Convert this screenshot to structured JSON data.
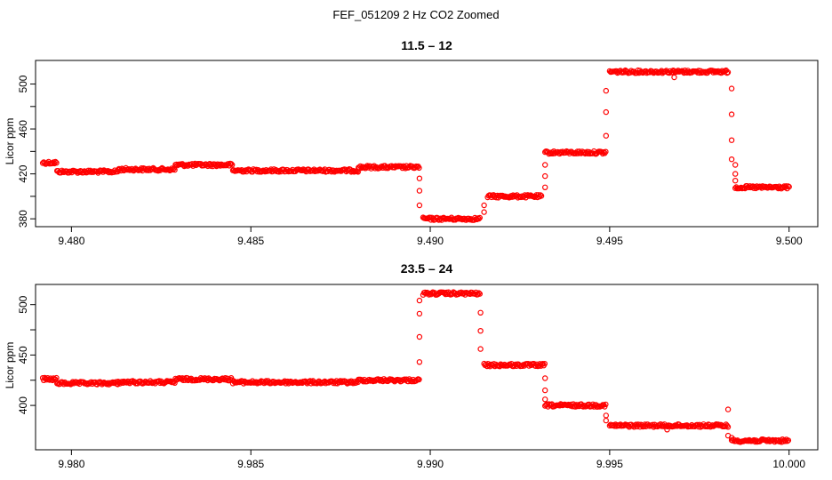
{
  "figure": {
    "title": "FEF_051209  2 Hz CO2 Zoomed"
  },
  "chart_data": [
    {
      "type": "scatter",
      "title": "11.5 – 12",
      "xlabel": "",
      "ylabel": "Licor ppm",
      "xlim": [
        9.479,
        9.5008
      ],
      "ylim": [
        373,
        521
      ],
      "x_ticks": [
        9.48,
        9.485,
        9.49,
        9.495,
        9.5
      ],
      "x_tick_labels": [
        "9.480",
        "9.485",
        "9.490",
        "9.495",
        "9.500"
      ],
      "y_ticks": [
        380,
        420,
        460,
        500
      ],
      "y_tick_labels": [
        "380",
        "420",
        "460",
        "500"
      ],
      "marker_color": "#ff0000",
      "segments": [
        {
          "x_start": 9.4792,
          "x_end": 9.4796,
          "y": 430
        },
        {
          "x_start": 9.4796,
          "x_end": 9.4813,
          "y": 422
        },
        {
          "x_start": 9.4813,
          "x_end": 9.4829,
          "y": 424
        },
        {
          "x_start": 9.4829,
          "x_end": 9.4845,
          "y": 428
        },
        {
          "x_start": 9.4845,
          "x_end": 9.488,
          "y": 423
        },
        {
          "x_start": 9.488,
          "x_end": 9.4897,
          "y": 426
        },
        {
          "x_start": 9.4898,
          "x_end": 9.4914,
          "y": 380
        },
        {
          "x_start": 9.4916,
          "x_end": 9.4931,
          "y": 400
        },
        {
          "x_start": 9.4932,
          "x_end": 9.4949,
          "y": 439
        },
        {
          "x_start": 9.495,
          "x_end": 9.4983,
          "y": 511
        },
        {
          "x_start": 9.4985,
          "x_end": 9.5,
          "y": 408
        }
      ],
      "transition_points": [
        {
          "x": 9.4897,
          "y": 416
        },
        {
          "x": 9.4897,
          "y": 405
        },
        {
          "x": 9.4897,
          "y": 392
        },
        {
          "x": 9.4915,
          "y": 386
        },
        {
          "x": 9.4915,
          "y": 392
        },
        {
          "x": 9.4932,
          "y": 408
        },
        {
          "x": 9.4932,
          "y": 418
        },
        {
          "x": 9.4932,
          "y": 428
        },
        {
          "x": 9.4949,
          "y": 454
        },
        {
          "x": 9.4949,
          "y": 475
        },
        {
          "x": 9.4949,
          "y": 494
        },
        {
          "x": 9.4984,
          "y": 496
        },
        {
          "x": 9.4984,
          "y": 473
        },
        {
          "x": 9.4984,
          "y": 450
        },
        {
          "x": 9.4984,
          "y": 433
        },
        {
          "x": 9.4985,
          "y": 428
        },
        {
          "x": 9.4985,
          "y": 420
        },
        {
          "x": 9.4985,
          "y": 414
        },
        {
          "x": 9.4968,
          "y": 506
        }
      ]
    },
    {
      "type": "scatter",
      "title": "23.5 – 24",
      "xlabel": "",
      "ylabel": "Licor ppm",
      "xlim": [
        9.979,
        10.0008
      ],
      "ylim": [
        356,
        520
      ],
      "x_ticks": [
        9.98,
        9.985,
        9.99,
        9.995,
        10.0
      ],
      "x_tick_labels": [
        "9.980",
        "9.985",
        "9.990",
        "9.995",
        "10.000"
      ],
      "y_ticks": [
        400,
        450,
        500
      ],
      "y_tick_labels": [
        "400",
        "450",
        "500"
      ],
      "marker_color": "#ff0000",
      "segments": [
        {
          "x_start": 9.9792,
          "x_end": 9.9796,
          "y": 426
        },
        {
          "x_start": 9.9796,
          "x_end": 9.9813,
          "y": 422
        },
        {
          "x_start": 9.9813,
          "x_end": 9.9829,
          "y": 423
        },
        {
          "x_start": 9.9829,
          "x_end": 9.9845,
          "y": 426
        },
        {
          "x_start": 9.9845,
          "x_end": 9.988,
          "y": 423
        },
        {
          "x_start": 9.988,
          "x_end": 9.9897,
          "y": 425
        },
        {
          "x_start": 9.9898,
          "x_end": 9.9914,
          "y": 511
        },
        {
          "x_start": 9.9915,
          "x_end": 9.9932,
          "y": 440
        },
        {
          "x_start": 9.9932,
          "x_end": 9.9949,
          "y": 400
        },
        {
          "x_start": 9.995,
          "x_end": 9.9983,
          "y": 380
        },
        {
          "x_start": 9.9984,
          "x_end": 10.0,
          "y": 365
        }
      ],
      "transition_points": [
        {
          "x": 9.9897,
          "y": 443
        },
        {
          "x": 9.9897,
          "y": 468
        },
        {
          "x": 9.9897,
          "y": 491
        },
        {
          "x": 9.9897,
          "y": 504
        },
        {
          "x": 9.9914,
          "y": 492
        },
        {
          "x": 9.9914,
          "y": 474
        },
        {
          "x": 9.9914,
          "y": 456
        },
        {
          "x": 9.9932,
          "y": 427
        },
        {
          "x": 9.9932,
          "y": 415
        },
        {
          "x": 9.9932,
          "y": 406
        },
        {
          "x": 9.9949,
          "y": 390
        },
        {
          "x": 9.9949,
          "y": 385
        },
        {
          "x": 9.9983,
          "y": 396
        },
        {
          "x": 9.9983,
          "y": 370
        },
        {
          "x": 9.9984,
          "y": 368
        },
        {
          "x": 9.9966,
          "y": 376
        }
      ]
    }
  ]
}
